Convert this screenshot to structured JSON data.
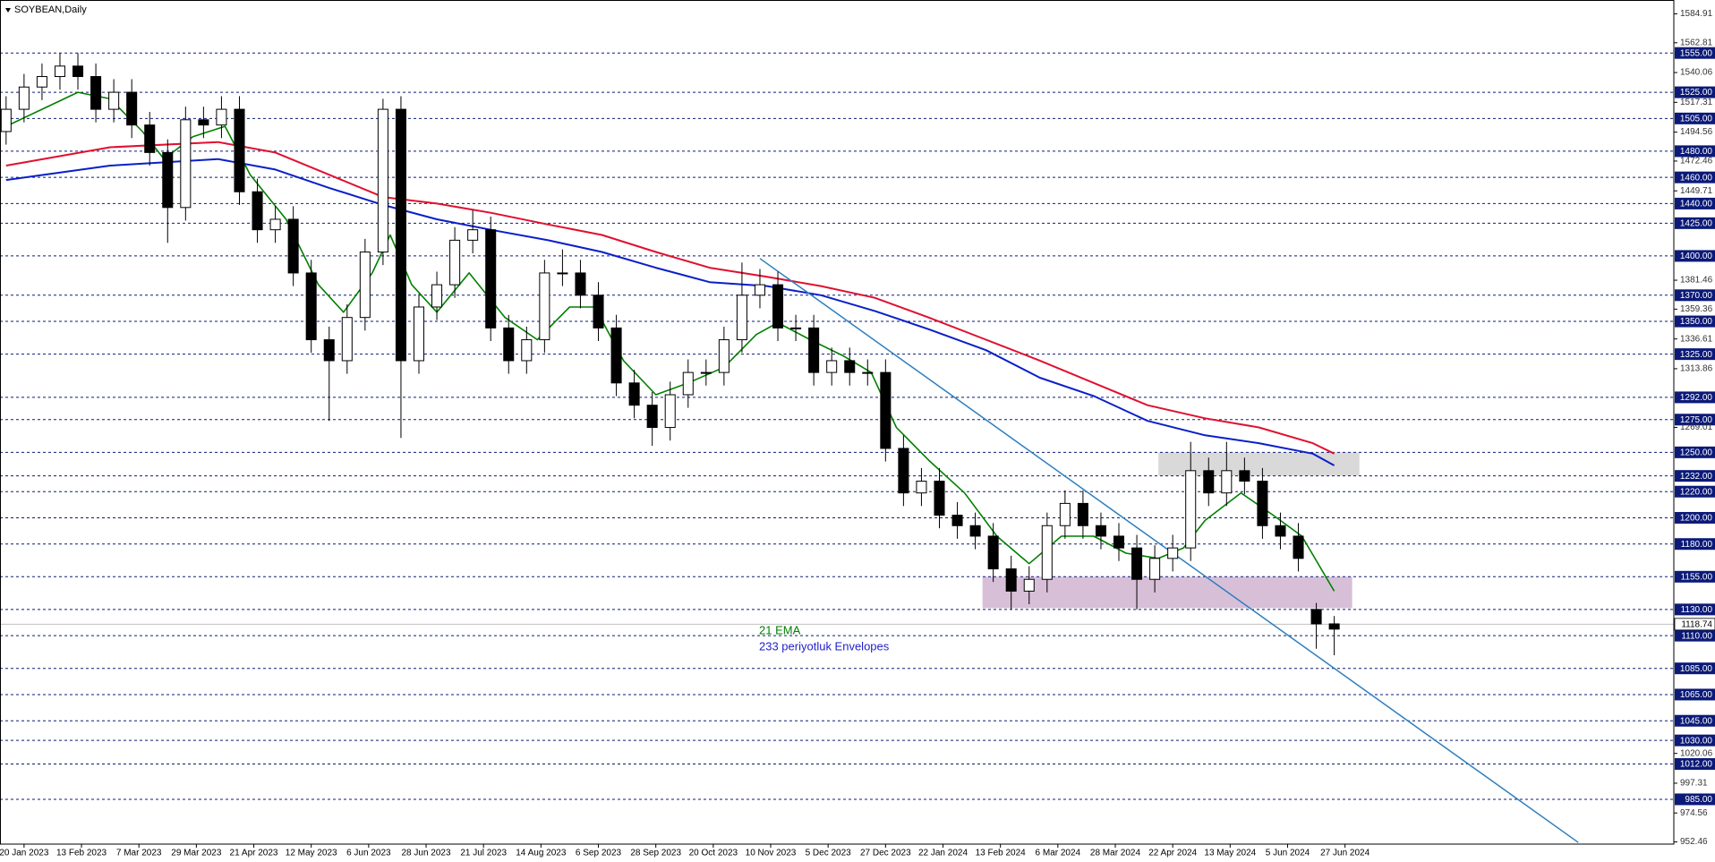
{
  "chart_data": {
    "type": "candlestick",
    "title": "SOYBEAN,Daily",
    "xlim": [
      -6.7,
      459.6
    ],
    "ylim": [
      950.8,
      1594.1
    ],
    "x": [
      -5,
      0,
      5,
      10,
      15,
      20,
      25,
      30,
      35,
      40,
      45,
      50,
      55,
      60,
      65,
      70,
      75,
      80,
      85,
      90,
      95,
      100,
      105,
      110,
      115,
      120,
      125,
      130,
      135,
      140,
      145,
      150,
      155,
      160,
      165,
      170,
      175,
      180,
      185,
      190,
      195,
      200,
      205,
      210,
      215,
      220,
      225,
      230,
      235,
      240,
      245,
      250,
      255,
      260,
      265,
      270,
      275,
      280,
      285,
      290,
      295,
      300,
      305,
      310,
      315,
      320,
      325,
      330,
      335,
      340,
      345,
      350,
      355,
      360,
      365
    ],
    "open": [
      1495,
      1512,
      1529,
      1537,
      1545,
      1537,
      1512,
      1525,
      1500,
      1479,
      1437,
      1504,
      1500,
      1512,
      1449,
      1420,
      1428,
      1387,
      1336,
      1320,
      1353,
      1403,
      1512,
      1320,
      1361,
      1378,
      1412,
      1420,
      1345,
      1320,
      1336,
      1387,
      1387,
      1370,
      1345,
      1303,
      1286,
      1269,
      1294,
      1311,
      1311,
      1336,
      1370,
      1378,
      1345,
      1345,
      1311,
      1320,
      1311,
      1311,
      1253,
      1219,
      1228,
      1202,
      1194,
      1186,
      1161,
      1144,
      1153,
      1194,
      1211,
      1194,
      1186,
      1177,
      1153,
      1169,
      1177,
      1236,
      1219,
      1236,
      1228,
      1194,
      1186,
      1130,
      1119
    ],
    "high": [
      1522,
      1539,
      1547,
      1555,
      1555,
      1547,
      1535,
      1535,
      1510,
      1489,
      1514,
      1514,
      1522,
      1522,
      1459,
      1438,
      1438,
      1397,
      1346,
      1363,
      1413,
      1520,
      1522,
      1371,
      1388,
      1422,
      1435,
      1430,
      1355,
      1346,
      1397,
      1405,
      1397,
      1380,
      1355,
      1313,
      1296,
      1304,
      1321,
      1321,
      1346,
      1395,
      1390,
      1388,
      1355,
      1355,
      1330,
      1330,
      1321,
      1321,
      1263,
      1238,
      1238,
      1212,
      1204,
      1196,
      1171,
      1163,
      1204,
      1221,
      1221,
      1204,
      1196,
      1187,
      1179,
      1187,
      1258,
      1246,
      1258,
      1246,
      1238,
      1204,
      1196,
      1135,
      1125
    ],
    "low": [
      1485,
      1502,
      1519,
      1527,
      1527,
      1502,
      1502,
      1490,
      1469,
      1410,
      1427,
      1490,
      1490,
      1439,
      1410,
      1410,
      1377,
      1326,
      1274,
      1310,
      1343,
      1393,
      1261,
      1310,
      1351,
      1368,
      1402,
      1335,
      1310,
      1310,
      1326,
      1377,
      1360,
      1335,
      1293,
      1276,
      1255,
      1259,
      1284,
      1301,
      1301,
      1326,
      1360,
      1335,
      1335,
      1301,
      1301,
      1301,
      1301,
      1243,
      1209,
      1209,
      1192,
      1184,
      1176,
      1151,
      1130,
      1134,
      1143,
      1184,
      1184,
      1176,
      1167,
      1130,
      1143,
      1159,
      1167,
      1209,
      1209,
      1218,
      1184,
      1176,
      1159,
      1100,
      1095
    ],
    "close": [
      1512,
      1529,
      1537,
      1545,
      1537,
      1512,
      1525,
      1500,
      1479,
      1437,
      1504,
      1500,
      1512,
      1449,
      1420,
      1428,
      1387,
      1336,
      1320,
      1353,
      1403,
      1512,
      1320,
      1361,
      1378,
      1412,
      1420,
      1345,
      1320,
      1336,
      1387,
      1387,
      1370,
      1345,
      1303,
      1286,
      1269,
      1294,
      1311,
      1311,
      1336,
      1370,
      1378,
      1345,
      1345,
      1311,
      1320,
      1311,
      1311,
      1253,
      1219,
      1228,
      1202,
      1194,
      1186,
      1161,
      1144,
      1153,
      1194,
      1211,
      1194,
      1186,
      1177,
      1153,
      1169,
      1177,
      1236,
      1219,
      1236,
      1228,
      1194,
      1186,
      1169,
      1119,
      1115
    ],
    "bull_color": "#ffffff",
    "bear_color": "#000000",
    "series": [
      {
        "name": "21 EMA",
        "color": "#008000",
        "x": [
          -5,
          5,
          15,
          24,
          33,
          39,
          47,
          56,
          63,
          73,
          82,
          89,
          97,
          102,
          108,
          115,
          124,
          134,
          143,
          152,
          159,
          167,
          176,
          185,
          195,
          204,
          210,
          219,
          228,
          236,
          243,
          252,
          262,
          271,
          280,
          289,
          298,
          307,
          316,
          323,
          329,
          339,
          348,
          356,
          365
        ],
        "values": [
          1499,
          1512,
          1525,
          1520,
          1495,
          1474,
          1491,
          1499,
          1462,
          1428,
          1378,
          1357,
          1387,
          1416,
          1378,
          1357,
          1387,
          1353,
          1336,
          1361,
          1361,
          1320,
          1294,
          1303,
          1315,
          1340,
          1349,
          1336,
          1324,
          1311,
          1269,
          1244,
          1219,
          1186,
          1165,
          1186,
          1186,
          1173,
          1169,
          1177,
          1198,
          1219,
          1202,
          1186,
          1144
        ]
      }
    ],
    "envelopes": {
      "name": "233 periyotluk Envelopes",
      "label_color": "#1f1fcc",
      "upper": {
        "color": "#e0102f",
        "x": [
          -5,
          24,
          54,
          70,
          85,
          100,
          115,
          130,
          146,
          161,
          176,
          191,
          207,
          222,
          237,
          252,
          268,
          283,
          298,
          313,
          329,
          344,
          359,
          365
        ],
        "values": [
          1469,
          1483,
          1487,
          1479,
          1462,
          1445,
          1440,
          1433,
          1424,
          1416,
          1403,
          1391,
          1384,
          1377,
          1368,
          1353,
          1336,
          1320,
          1303,
          1286,
          1276,
          1269,
          1257,
          1249
        ]
      },
      "lower": {
        "color": "#0a1fc8",
        "x": [
          -5,
          24,
          54,
          70,
          85,
          100,
          115,
          130,
          146,
          161,
          176,
          191,
          207,
          222,
          237,
          252,
          268,
          283,
          298,
          313,
          329,
          344,
          359,
          365
        ],
        "values": [
          1458,
          1469,
          1474,
          1466,
          1452,
          1439,
          1428,
          1420,
          1412,
          1403,
          1391,
          1380,
          1377,
          1370,
          1358,
          1344,
          1328,
          1307,
          1293,
          1274,
          1263,
          1257,
          1249,
          1240
        ]
      }
    },
    "trendline": {
      "color": "#2f7fbf",
      "x": [
        205,
        433
      ],
      "values": [
        1398,
        952
      ]
    },
    "zones": [
      {
        "color": "#d9d9d9",
        "x": [
          316,
          372
        ],
        "values": [
          1232,
          1250
        ]
      },
      {
        "color": "#d8bfd8",
        "x": [
          267,
          370
        ],
        "values": [
          1131,
          1155
        ]
      }
    ],
    "level_color": "#0b1a78",
    "levels": [
      {
        "value": 1555,
        "label": "1555.00"
      },
      {
        "value": 1525,
        "label": "1525.00"
      },
      {
        "value": 1505,
        "label": "1505.00"
      },
      {
        "value": 1480,
        "label": "1480.00"
      },
      {
        "value": 1460,
        "label": "1460.00"
      },
      {
        "value": 1440,
        "label": "1440.00"
      },
      {
        "value": 1425,
        "label": "1425.00"
      },
      {
        "value": 1400,
        "label": "1400.00"
      },
      {
        "value": 1370,
        "label": "1370.00"
      },
      {
        "value": 1350,
        "label": "1350.00"
      },
      {
        "value": 1325,
        "label": "1325.00"
      },
      {
        "value": 1292,
        "label": "1292.00"
      },
      {
        "value": 1275,
        "label": "1275.00"
      },
      {
        "value": 1250,
        "label": "1250.00"
      },
      {
        "value": 1232,
        "label": "1232.00"
      },
      {
        "value": 1220,
        "label": "1220.00"
      },
      {
        "value": 1200,
        "label": "1200.00"
      },
      {
        "value": 1180,
        "label": "1180.00"
      },
      {
        "value": 1155,
        "label": "1155.00"
      },
      {
        "value": 1130,
        "label": "1130.00"
      },
      {
        "value": 1110,
        "label": "1110.00"
      },
      {
        "value": 1085,
        "label": "1085.00"
      },
      {
        "value": 1065,
        "label": "1065.00"
      },
      {
        "value": 1045,
        "label": "1045.00"
      },
      {
        "value": 1030,
        "label": "1030.00"
      },
      {
        "value": 1012,
        "label": "1012.00"
      },
      {
        "value": 985,
        "label": "985.00"
      }
    ],
    "last_price": 1118.74,
    "yticks": [
      1584.91,
      1562.81,
      1540.06,
      1517.31,
      1494.56,
      1472.46,
      1449.71,
      1381.46,
      1359.36,
      1336.61,
      1313.86,
      1269.01,
      1020.06,
      997.31,
      974.56,
      952.46
    ],
    "xticks": [
      {
        "value": 0,
        "label": "20 Jan 2023"
      },
      {
        "value": 16,
        "label": "13 Feb 2023"
      },
      {
        "value": 32,
        "label": "7 Mar 2023"
      },
      {
        "value": 48,
        "label": "29 Mar 2023"
      },
      {
        "value": 64,
        "label": "21 Apr 2023"
      },
      {
        "value": 80,
        "label": "12 May 2023"
      },
      {
        "value": 96,
        "label": "6 Jun 2023"
      },
      {
        "value": 112,
        "label": "28 Jun 2023"
      },
      {
        "value": 128,
        "label": "21 Jul 2023"
      },
      {
        "value": 144,
        "label": "14 Aug 2023"
      },
      {
        "value": 160,
        "label": "6 Sep 2023"
      },
      {
        "value": 176,
        "label": "28 Sep 2023"
      },
      {
        "value": 192,
        "label": "20 Oct 2023"
      },
      {
        "value": 208,
        "label": "10 Nov 2023"
      },
      {
        "value": 224,
        "label": "5 Dec 2023"
      },
      {
        "value": 240,
        "label": "27 Dec 2023"
      },
      {
        "value": 256,
        "label": "22 Jan 2024"
      },
      {
        "value": 272,
        "label": "13 Feb 2024"
      },
      {
        "value": 288,
        "label": "6 Mar 2024"
      },
      {
        "value": 304,
        "label": "28 Mar 2024"
      },
      {
        "value": 320,
        "label": "22 Apr 2024"
      },
      {
        "value": 336,
        "label": "13 May 2024"
      },
      {
        "value": 352,
        "label": "5 Jun 2024"
      },
      {
        "value": 368,
        "label": "27 Jun 2024"
      }
    ]
  }
}
